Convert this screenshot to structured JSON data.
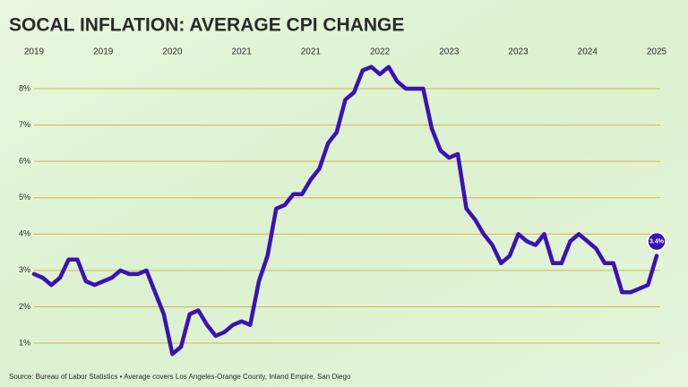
{
  "chart_data": {
    "type": "line",
    "title": "SOCAL INFLATION: AVERAGE CPI CHANGE",
    "source": "Source: Bureau of Labor Statistics • Average covers Los Angeles-Orange County, Inland Empire, San Diego",
    "categories": [
      "2019",
      null,
      null,
      null,
      null,
      null,
      null,
      null,
      "2019",
      null,
      null,
      null,
      null,
      null,
      null,
      null,
      "2020",
      null,
      null,
      null,
      null,
      null,
      null,
      null,
      "2021",
      null,
      null,
      null,
      null,
      null,
      null,
      null,
      "2021",
      null,
      null,
      null,
      null,
      null,
      null,
      null,
      "2022",
      null,
      null,
      null,
      null,
      null,
      null,
      null,
      "2023",
      null,
      null,
      null,
      null,
      null,
      null,
      null,
      "2023",
      null,
      null,
      null,
      null,
      null,
      null,
      null,
      "2024",
      null,
      null,
      null,
      null,
      null,
      null,
      null,
      "2025"
    ],
    "values": [
      2.9,
      2.8,
      2.6,
      2.8,
      3.3,
      3.3,
      2.7,
      2.6,
      2.7,
      2.8,
      3.0,
      2.9,
      2.9,
      3.0,
      2.4,
      1.8,
      0.7,
      0.9,
      1.8,
      1.9,
      1.5,
      1.2,
      1.3,
      1.5,
      1.6,
      1.5,
      2.7,
      3.4,
      4.7,
      4.8,
      5.1,
      5.1,
      5.5,
      5.8,
      6.5,
      6.8,
      7.7,
      7.9,
      8.5,
      8.6,
      8.4,
      8.6,
      8.2,
      8.0,
      8.0,
      8.0,
      6.9,
      6.3,
      6.1,
      6.2,
      4.7,
      4.4,
      4.0,
      3.7,
      3.2,
      3.4,
      4.0,
      3.8,
      3.7,
      4.0,
      3.2,
      3.2,
      3.8,
      4.0,
      3.8,
      3.6,
      3.2,
      3.2,
      2.4,
      2.4,
      2.5,
      2.6,
      3.4
    ],
    "value_labels": [
      null,
      null,
      null,
      null,
      null,
      null,
      null,
      null,
      null,
      null,
      null,
      null,
      null,
      null,
      null,
      null,
      null,
      null,
      null,
      null,
      null,
      null,
      null,
      null,
      null,
      null,
      null,
      null,
      null,
      null,
      null,
      null,
      null,
      null,
      null,
      null,
      null,
      null,
      null,
      null,
      null,
      null,
      null,
      null,
      null,
      null,
      null,
      null,
      null,
      null,
      null,
      null,
      null,
      null,
      null,
      null,
      null,
      null,
      null,
      null,
      null,
      null,
      null,
      null,
      null,
      null,
      null,
      null,
      null,
      null,
      null,
      null,
      "3.4%"
    ],
    "color": "#3a12b8",
    "grid_color": "#d4b448",
    "ylim": [
      0.5,
      8.9
    ],
    "yticks": [
      {
        "value": 1,
        "label": "1%"
      },
      {
        "value": 2,
        "label": "2%"
      },
      {
        "value": 3,
        "label": "3%"
      },
      {
        "value": 4,
        "label": "4%"
      },
      {
        "value": 5,
        "label": "5%"
      },
      {
        "value": 6,
        "label": "6%"
      },
      {
        "value": 7,
        "label": "7%"
      },
      {
        "value": 8,
        "label": "8%"
      }
    ],
    "grid": true
  }
}
